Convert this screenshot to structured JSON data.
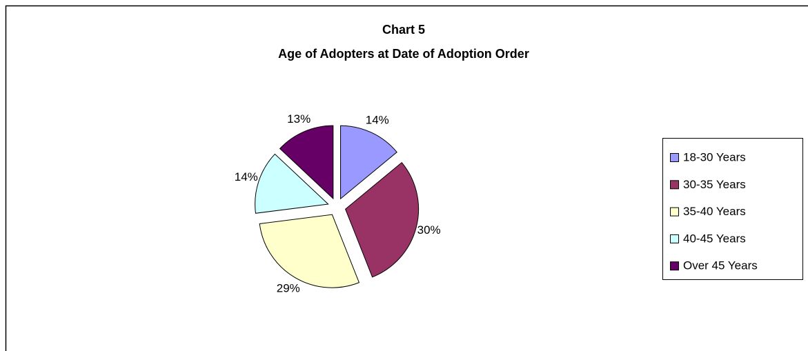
{
  "chart_data": {
    "type": "pie",
    "title": "Chart 5",
    "subtitle": "Age of Adopters at Date of Adoption Order",
    "categories": [
      "18-30 Years",
      "30-35 Years",
      "35-40 Years",
      "40-45 Years",
      "Over 45 Years"
    ],
    "values": [
      14,
      30,
      29,
      14,
      13
    ],
    "value_labels": [
      "14%",
      "30%",
      "29%",
      "14%",
      "13%"
    ],
    "colors": [
      "#9999ff",
      "#993366",
      "#ffffcc",
      "#ccffff",
      "#660066"
    ],
    "legend": "right"
  }
}
